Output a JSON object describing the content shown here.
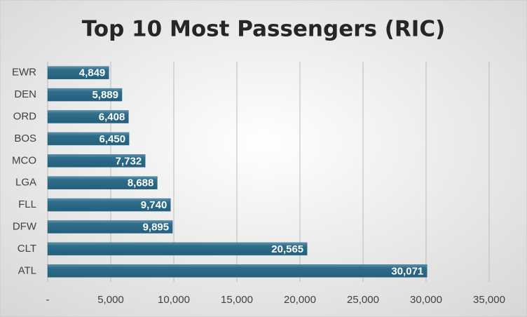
{
  "chart_data": {
    "type": "bar",
    "orientation": "horizontal",
    "title": "Top 10 Most Passengers  (RIC)",
    "categories": [
      "EWR",
      "DEN",
      "ORD",
      "BOS",
      "MCO",
      "LGA",
      "FLL",
      "DFW",
      "CLT",
      "ATL"
    ],
    "values": [
      4849,
      5889,
      6408,
      6450,
      7732,
      8688,
      9740,
      9895,
      20565,
      30071
    ],
    "value_labels": [
      "4,849",
      "5,889",
      "6,408",
      "6,450",
      "7,732",
      "8,688",
      "9,740",
      "9,895",
      "20,565",
      "30,071"
    ],
    "color": "#2f6d8a",
    "xlim": [
      0,
      35000
    ],
    "xticks": [
      {
        "value": 0,
        "label": "-"
      },
      {
        "value": 5000,
        "label": "5,000"
      },
      {
        "value": 10000,
        "label": "10,000"
      },
      {
        "value": 15000,
        "label": "15,000"
      },
      {
        "value": 20000,
        "label": "20,000"
      },
      {
        "value": 25000,
        "label": "25,000"
      },
      {
        "value": 30000,
        "label": "30,000"
      },
      {
        "value": 35000,
        "label": "35,000"
      }
    ],
    "grid": true
  }
}
